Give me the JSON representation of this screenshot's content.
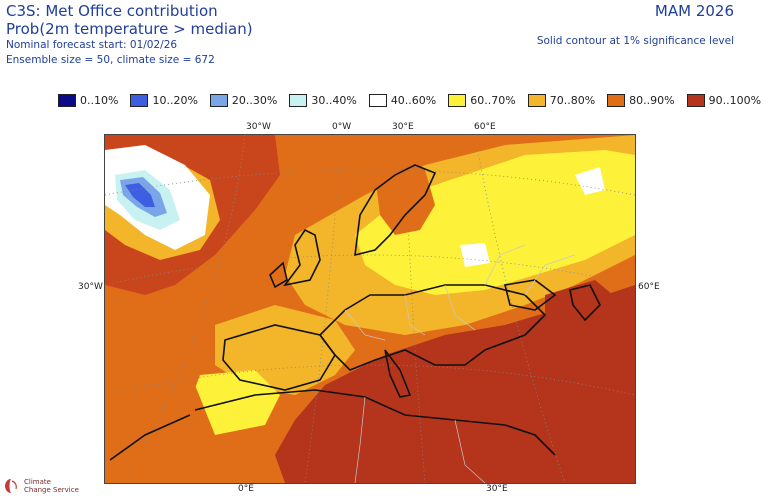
{
  "header": {
    "title": "C3S: Met Office contribution",
    "subtitle": "Prob(2m temperature > median)",
    "forecast_start": "Nominal forecast start: 01/02/26",
    "ensemble": "Ensemble size = 50, climate size = 672",
    "season": "MAM 2026",
    "significance": "Solid contour at 1% significance level"
  },
  "legend": [
    {
      "label": "0..10%",
      "color": "#0b0b8a"
    },
    {
      "label": "10..20%",
      "color": "#3d5ee0"
    },
    {
      "label": "20..30%",
      "color": "#7aa6e8"
    },
    {
      "label": "30..40%",
      "color": "#c8f2f2"
    },
    {
      "label": "40..60%",
      "color": "#ffffff"
    },
    {
      "label": "60..70%",
      "color": "#fdf13a"
    },
    {
      "label": "70..80%",
      "color": "#f3b52a"
    },
    {
      "label": "80..90%",
      "color": "#e06e18"
    },
    {
      "label": "90..100%",
      "color": "#b4341c"
    }
  ],
  "grid_labels": {
    "lon_top": [
      "30°W",
      "0°W",
      "30°E",
      "60°E"
    ],
    "lat_left": "30°W",
    "lat_right": "60°E",
    "lon_bottom": [
      "0°E",
      "30°E"
    ]
  },
  "logo": {
    "line1": "Climate",
    "line2": "Change Service"
  },
  "colors": {
    "title_text": "#1f3f9a",
    "coast": "#111111",
    "borders": "#c8c8c8",
    "grid": "#888888"
  }
}
